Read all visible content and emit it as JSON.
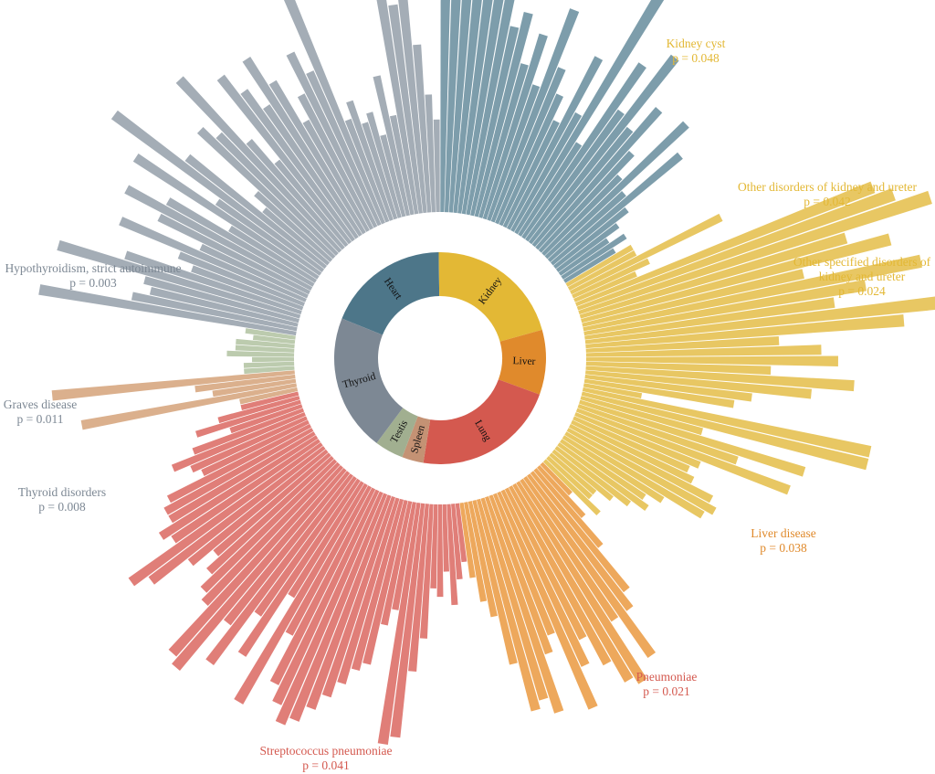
{
  "chart_data": {
    "type": "bar",
    "layout": "circular",
    "title": "",
    "xlabel": "",
    "ylabel": "",
    "grid": false,
    "colors": {
      "Heart": "#7d9dab",
      "Kidney": "#e8c763",
      "Liver": "#eda85c",
      "Lung": "#e07e78",
      "Spleen": "#dbb08d",
      "Testis": "#bccbae",
      "Thyroid": "#a4adb6"
    },
    "donut_colors": {
      "Heart": "#4d7689",
      "Kidney": "#e3b835",
      "Liver": "#e08a2c",
      "Lung": "#d4594f",
      "Spleen": "#c49274",
      "Testis": "#a1af90",
      "Thyroid": "#7d8894"
    },
    "donut": [
      {
        "label": "Heart",
        "value": 17
      },
      {
        "label": "Kidney",
        "value": 19
      },
      {
        "label": "Liver",
        "value": 9
      },
      {
        "label": "Lung",
        "value": 20
      },
      {
        "label": "Spleen",
        "value": 3
      },
      {
        "label": "Testis",
        "value": 4
      },
      {
        "label": "Thyroid",
        "value": 19
      }
    ],
    "series": [
      {
        "name": "Heart",
        "values": [
          39,
          34,
          42,
          35,
          44,
          30,
          32,
          23,
          25,
          19,
          23,
          17,
          27,
          20,
          17,
          14,
          23,
          16,
          33,
          13,
          25,
          19,
          28,
          18,
          22,
          16,
          13,
          23,
          12,
          20,
          11,
          9,
          7,
          9,
          7
        ]
      },
      {
        "name": "Kidney",
        "values": [
          9,
          9,
          20,
          10,
          8,
          38,
          40,
          44,
          33,
          38,
          27,
          41,
          34,
          30,
          42,
          38,
          23,
          28,
          30,
          22,
          32,
          27,
          20,
          18,
          7,
          35,
          35,
          15,
          28,
          20,
          27,
          16,
          15,
          16,
          19,
          20,
          19,
          14,
          12,
          13,
          11,
          9,
          7,
          7,
          9
        ]
      },
      {
        "name": "Liver",
        "values": [
          5,
          8,
          12,
          18,
          20,
          26,
          20,
          28,
          27,
          24,
          20,
          23,
          28,
          18,
          20,
          27,
          25,
          26,
          20,
          14,
          12,
          9
        ]
      },
      {
        "name": "Lung",
        "values": [
          7,
          9,
          12,
          8,
          11,
          10,
          16,
          20,
          28,
          29,
          13,
          15,
          20,
          21,
          23,
          25,
          27,
          29,
          30,
          28,
          26,
          20,
          30,
          16,
          25,
          20,
          28,
          23,
          31,
          30,
          23,
          22,
          20,
          18,
          21,
          26,
          28,
          21,
          22,
          20,
          20,
          19,
          14,
          15,
          17,
          14,
          9,
          13,
          10,
          7
        ]
      },
      {
        "name": "Spleen",
        "values": [
          7,
          26,
          10,
          12,
          29
        ]
      },
      {
        "name": "Testis",
        "values": [
          6,
          6,
          5,
          8,
          7,
          7,
          5,
          6
        ]
      },
      {
        "name": "Thyroid",
        "values": [
          31,
          20,
          18,
          19,
          30,
          22,
          14,
          16,
          24,
          14,
          20,
          25,
          20,
          12,
          26,
          15,
          31,
          21,
          10,
          12,
          22,
          20,
          28,
          17,
          13,
          25,
          22,
          19,
          25,
          21,
          15,
          18,
          23,
          20,
          31,
          13,
          15,
          12,
          13,
          10,
          17,
          12,
          29,
          25,
          28,
          20,
          14,
          11
        ]
      }
    ],
    "annotations": [
      {
        "series": "Kidney",
        "lines": [
          "Kidney cyst",
          "p = 0.048"
        ]
      },
      {
        "series": "Kidney",
        "lines": [
          "Other disorders of kidney and ureter",
          "p = 0.042"
        ]
      },
      {
        "series": "Kidney",
        "lines": [
          "Other specified disorders of",
          "kidney and ureter",
          "p = 0.024"
        ]
      },
      {
        "series": "Liver",
        "lines": [
          "Liver disease",
          "p = 0.038"
        ]
      },
      {
        "series": "Lung",
        "lines": [
          "Pneumoniae",
          "p = 0.021"
        ]
      },
      {
        "series": "Lung",
        "lines": [
          "Streptococcus pneumoniae",
          "p = 0.041"
        ]
      },
      {
        "series": "Thyroid",
        "lines": [
          "Thyroid disorders",
          "p = 0.008"
        ]
      },
      {
        "series": "Thyroid",
        "lines": [
          "Graves disease",
          "p = 0.011"
        ]
      },
      {
        "series": "Thyroid",
        "lines": [
          "Hypothyroidism, strict autoimmune",
          "p = 0.003"
        ]
      }
    ]
  }
}
